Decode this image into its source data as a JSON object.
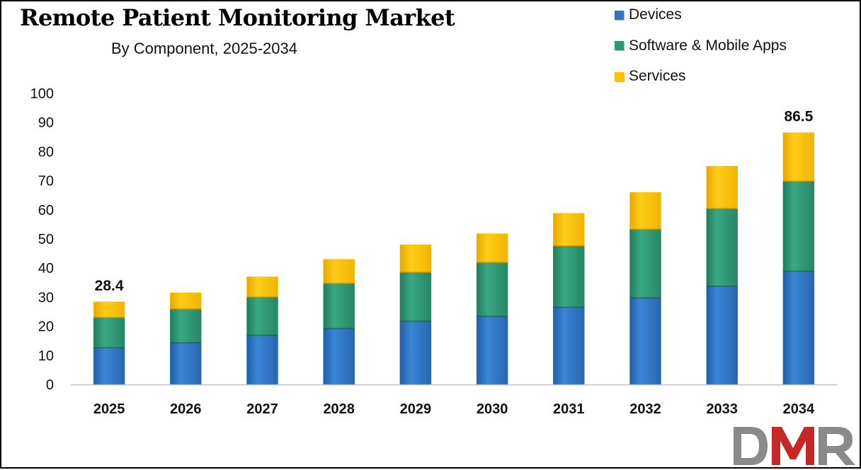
{
  "chart_data": {
    "type": "bar",
    "stacked": true,
    "title": "Remote Patient Monitoring Market",
    "subtitle": "By Component,  2025-2034",
    "categories": [
      "2025",
      "2026",
      "2027",
      "2028",
      "2029",
      "2030",
      "2031",
      "2032",
      "2033",
      "2034"
    ],
    "series": [
      {
        "name": "Devices",
        "color": "#2e75c2",
        "values": [
          12.5,
          14.2,
          16.8,
          19.1,
          21.6,
          23.3,
          26.4,
          29.6,
          33.6,
          38.8
        ]
      },
      {
        "name": "Software & Mobile Apps",
        "color": "#2e9873",
        "values": [
          10.3,
          11.5,
          13.0,
          15.4,
          16.7,
          18.4,
          21.0,
          23.5,
          26.6,
          30.8
        ]
      },
      {
        "name": "Services",
        "color": "#ffc000",
        "values": [
          5.6,
          5.8,
          7.2,
          8.5,
          9.7,
          10.1,
          11.4,
          12.9,
          14.8,
          16.9
        ]
      }
    ],
    "data_labels": {
      "2025": "28.4",
      "2034": "86.5"
    },
    "ylim": [
      0,
      100
    ],
    "yticks": [
      0,
      10,
      20,
      30,
      40,
      50,
      60,
      70,
      80,
      90,
      100
    ],
    "xlabel": "",
    "ylabel": "",
    "grid": false,
    "legend_position": "top-right"
  },
  "logo": {
    "text": "DMR"
  }
}
